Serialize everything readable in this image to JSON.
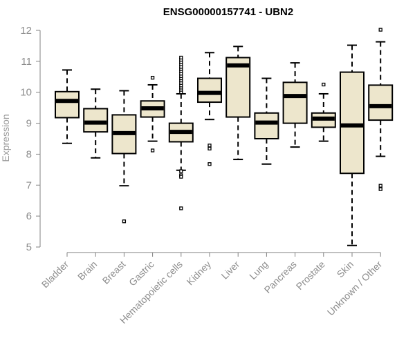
{
  "chart_data": {
    "type": "boxplot",
    "title": "ENSG00000157741 - UBN2",
    "xlabel": "",
    "ylabel": "Expression",
    "ylim": [
      5,
      12
    ],
    "yticks": [
      5,
      6,
      7,
      8,
      9,
      10,
      11,
      12
    ],
    "box_fill": "#ede6cc",
    "stroke": "#000000",
    "axis_color": "#808080",
    "grid": false,
    "categories": [
      "Bladder",
      "Brain",
      "Breast",
      "Gastric",
      "Hematopoietic cells",
      "Kidney",
      "Liver",
      "Lung",
      "Pancreas",
      "Prostate",
      "Skin",
      "Unknown / Other"
    ],
    "boxes": [
      {
        "min": 8.35,
        "q1": 9.18,
        "median": 9.72,
        "q3": 10.02,
        "max": 10.72,
        "outliers": []
      },
      {
        "min": 7.88,
        "q1": 8.72,
        "median": 9.02,
        "q3": 9.47,
        "max": 10.1,
        "outliers": []
      },
      {
        "min": 6.98,
        "q1": 8.02,
        "median": 8.68,
        "q3": 9.27,
        "max": 10.05,
        "outliers": [
          5.83
        ]
      },
      {
        "min": 8.42,
        "q1": 9.2,
        "median": 9.48,
        "q3": 9.72,
        "max": 10.24,
        "outliers": [
          10.47,
          8.12
        ]
      },
      {
        "min": 7.48,
        "q1": 8.4,
        "median": 8.72,
        "q3": 9.0,
        "max": 9.95,
        "outliers": [
          10.0,
          10.08,
          10.15,
          10.22,
          10.3,
          10.38,
          10.45,
          10.52,
          10.6,
          10.68,
          10.75,
          10.82,
          10.9,
          10.97,
          11.05,
          11.12,
          7.45,
          7.32,
          7.27,
          6.25
        ]
      },
      {
        "min": 9.12,
        "q1": 9.68,
        "median": 9.98,
        "q3": 10.45,
        "max": 11.28,
        "outliers": [
          8.28,
          8.18,
          7.68
        ]
      },
      {
        "min": 7.83,
        "q1": 9.2,
        "median": 10.87,
        "q3": 11.12,
        "max": 11.48,
        "outliers": []
      },
      {
        "min": 7.68,
        "q1": 8.5,
        "median": 9.02,
        "q3": 9.33,
        "max": 10.45,
        "outliers": []
      },
      {
        "min": 8.23,
        "q1": 9.0,
        "median": 9.88,
        "q3": 10.32,
        "max": 10.95,
        "outliers": []
      },
      {
        "min": 8.42,
        "q1": 8.87,
        "median": 9.15,
        "q3": 9.33,
        "max": 9.95,
        "outliers": [
          10.25
        ]
      },
      {
        "min": 5.05,
        "q1": 7.38,
        "median": 8.93,
        "q3": 10.65,
        "max": 11.52,
        "outliers": []
      },
      {
        "min": 7.93,
        "q1": 9.1,
        "median": 9.55,
        "q3": 10.23,
        "max": 11.63,
        "outliers": [
          12.02,
          6.98,
          6.87
        ]
      }
    ]
  }
}
